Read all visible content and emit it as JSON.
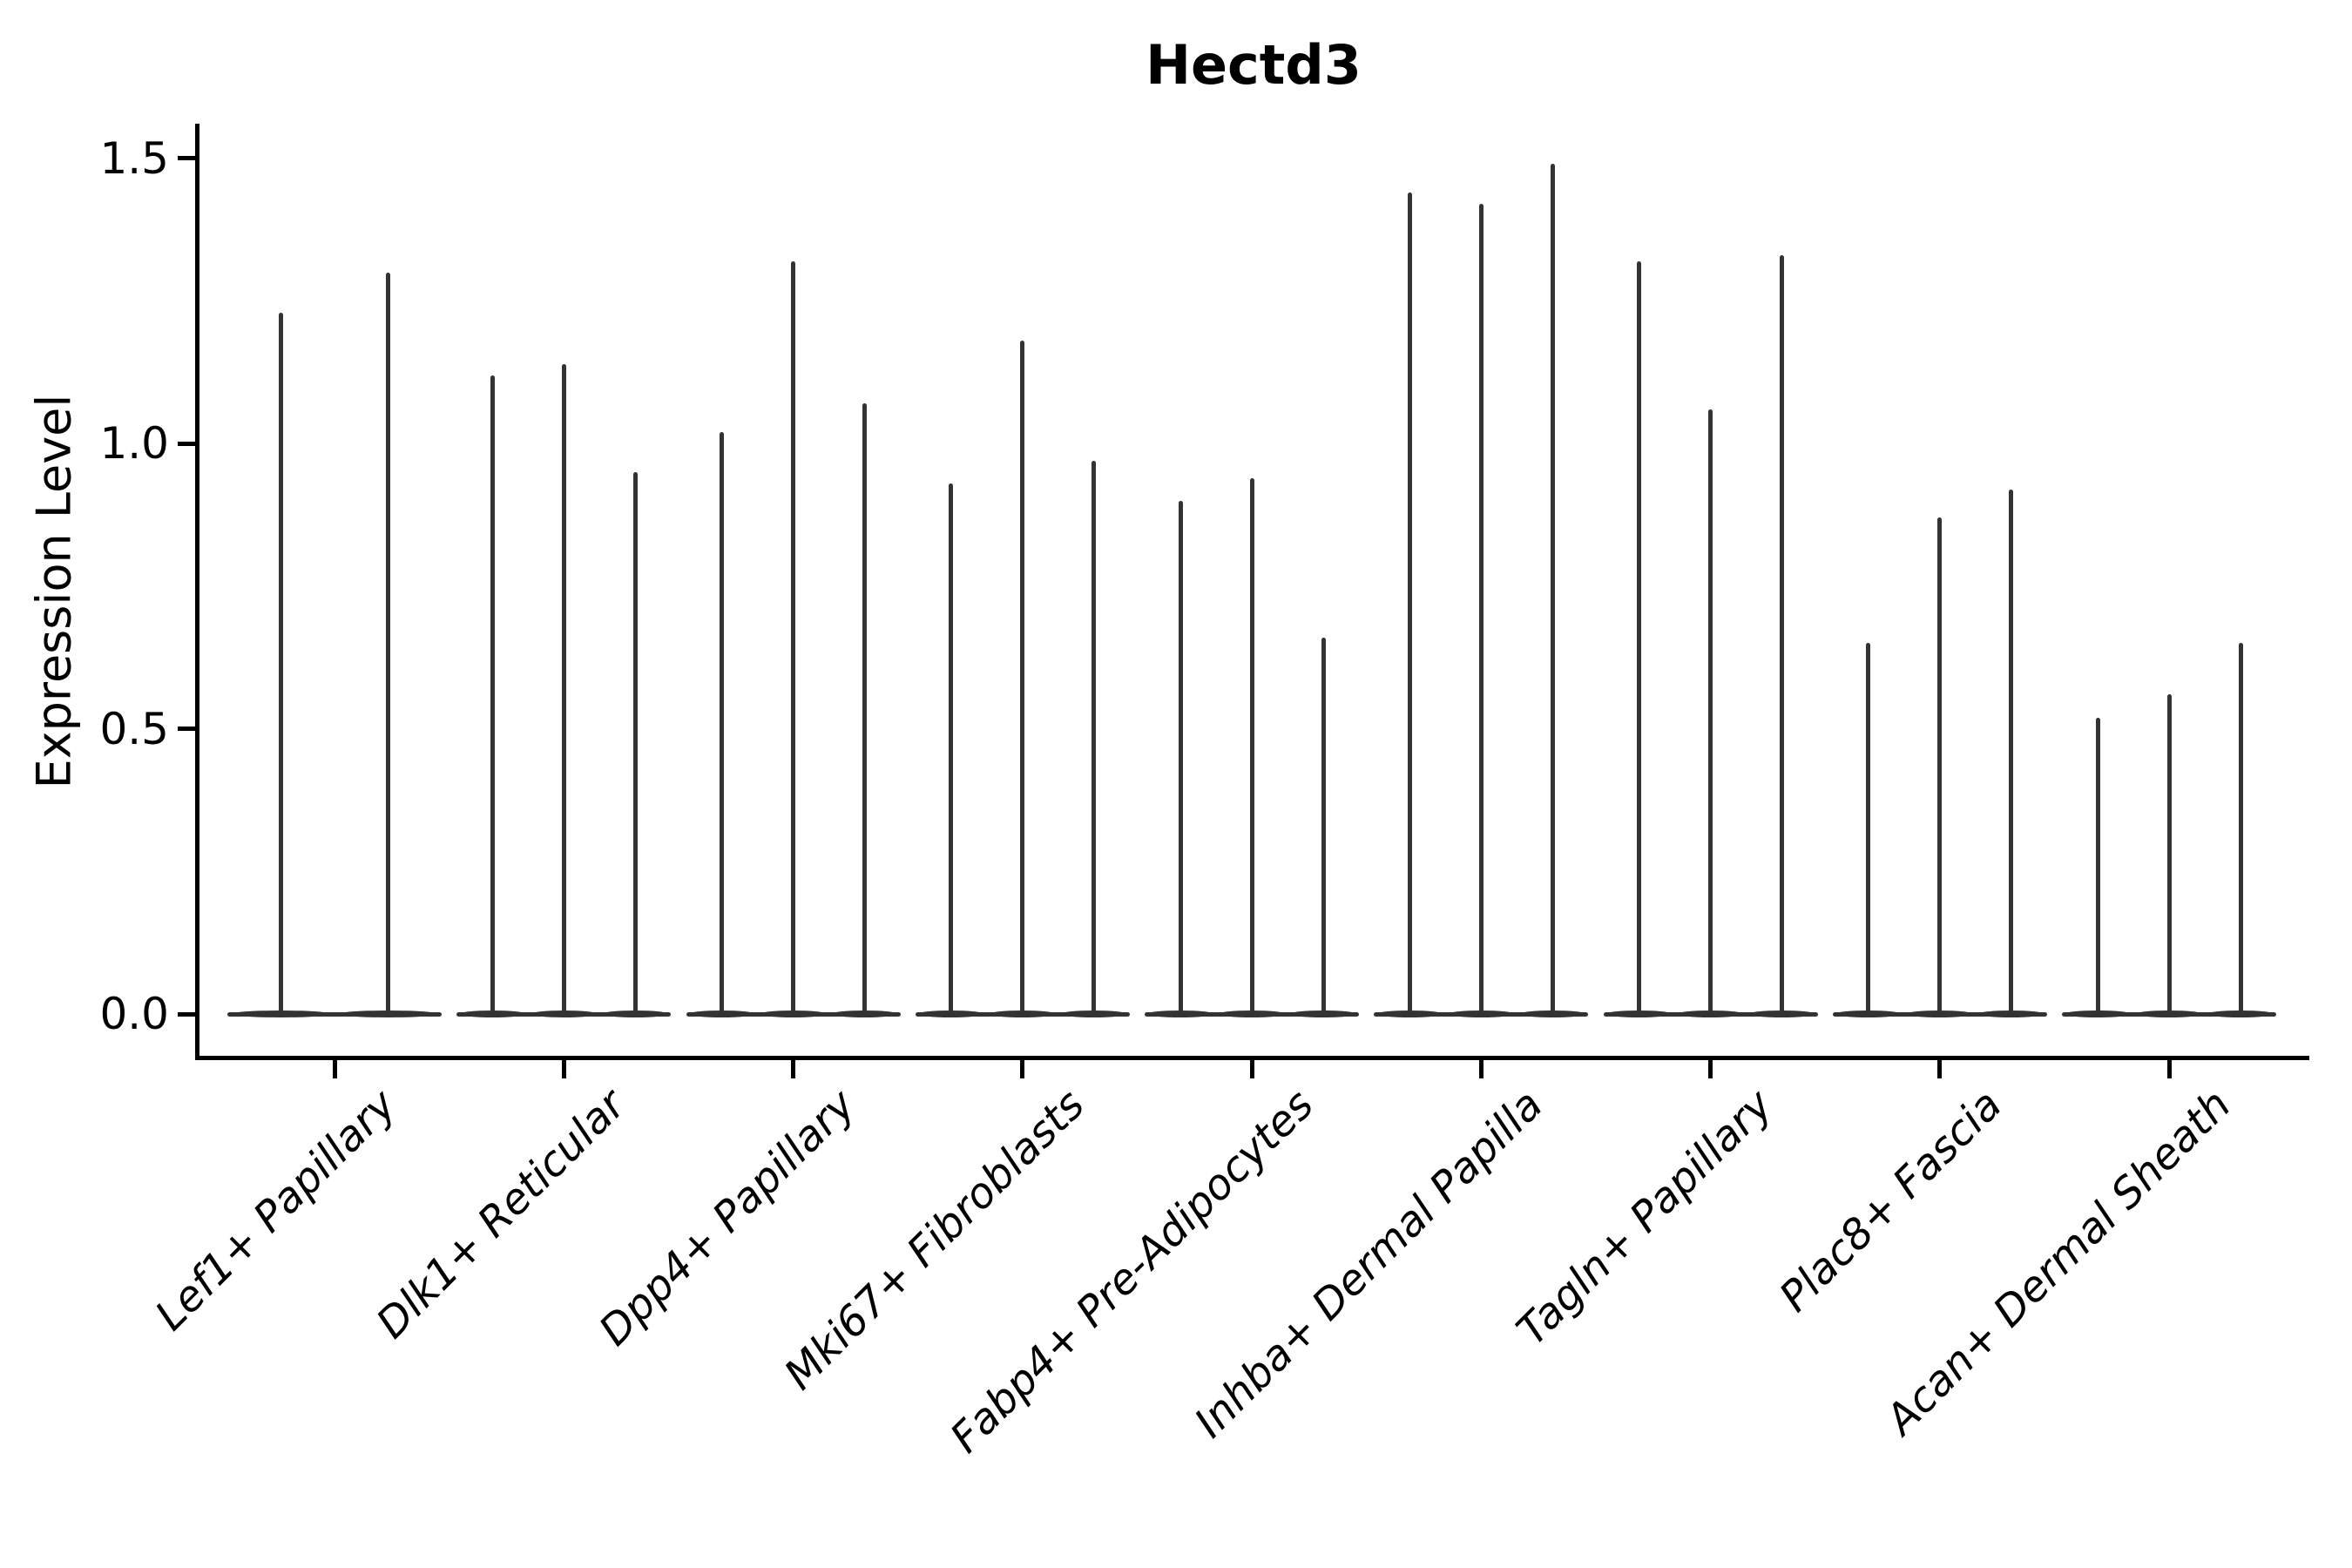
{
  "chart_data": {
    "type": "violin",
    "title": "Hectd3",
    "ylabel": "Expression Level",
    "xlabel": "",
    "ylim": [
      0,
      1.56
    ],
    "grid": false,
    "legend": false,
    "yticks": [
      {
        "label": "0.0",
        "value": 0.0
      },
      {
        "label": "0.5",
        "value": 0.5
      },
      {
        "label": "1.0",
        "value": 1.0
      },
      {
        "label": "1.5",
        "value": 1.5
      }
    ],
    "groups": [
      {
        "category": "Lef1+ Papillary",
        "violin_max_values": [
          1.23,
          1.3
        ]
      },
      {
        "category": "Dlk1+ Reticular",
        "violin_max_values": [
          1.12,
          1.14,
          0.95
        ]
      },
      {
        "category": "Dpp4+ Papillary",
        "violin_max_values": [
          1.02,
          1.32,
          1.07
        ]
      },
      {
        "category": "Mki67+ Fibroblasts",
        "violin_max_values": [
          0.93,
          1.18,
          0.97
        ]
      },
      {
        "category": "Fabp4+ Pre-Adipocytes",
        "violin_max_values": [
          0.9,
          0.94,
          0.66
        ]
      },
      {
        "category": "Inhba+ Dermal Papilla",
        "violin_max_values": [
          1.44,
          1.42,
          1.49
        ]
      },
      {
        "category": "Tagln+ Papillary",
        "violin_max_values": [
          1.32,
          1.06,
          1.33
        ]
      },
      {
        "category": "Plac8+ Fascia",
        "violin_max_values": [
          0.65,
          0.87,
          0.92
        ]
      },
      {
        "category": "Acan+ Dermal Sheath",
        "violin_max_values": [
          0.52,
          0.56,
          0.65
        ]
      }
    ],
    "style": {
      "violin_color": "#333333",
      "axis_color": "#000000",
      "background_color": "#ffffff",
      "x_label_rotation_deg": 45,
      "x_label_style": "italic"
    }
  }
}
